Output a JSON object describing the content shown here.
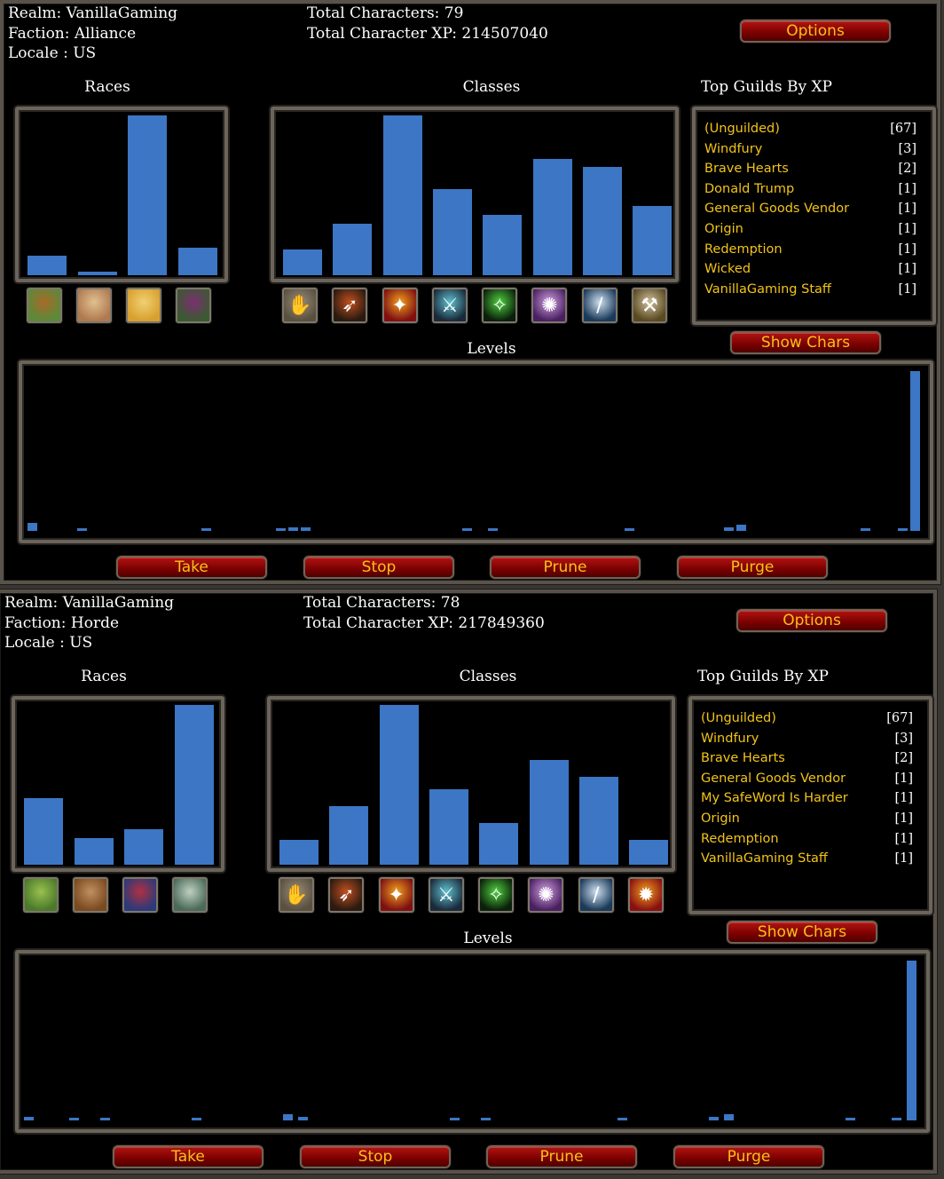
{
  "panels": [
    {
      "realm": "Realm: VanillaGaming",
      "faction": "Faction: Alliance",
      "locale": "Locale : US",
      "total_chars": "Total Characters: 79",
      "total_xp": "Total Character XP: 214507040",
      "options_label": "Options",
      "races_header": "Races",
      "classes_header": "Classes",
      "guilds_header": "Top Guilds By XP",
      "levels_header": "Levels",
      "show_chars_label": "Show Chars",
      "buttons": {
        "take": "Take",
        "stop": "Stop",
        "prune": "Prune",
        "purge": "Purge"
      },
      "race_values": [
        5,
        1,
        40,
        7
      ],
      "race_icons": [
        {
          "name": "dwarf-icon",
          "colors": [
            "#5a8a3a",
            "#a86a28"
          ]
        },
        {
          "name": "gnome-icon",
          "colors": [
            "#b07a50",
            "#e0c090"
          ]
        },
        {
          "name": "human-icon",
          "colors": [
            "#d8a030",
            "#f0d070"
          ]
        },
        {
          "name": "night-elf-icon",
          "colors": [
            "#3a5a30",
            "#7a3070"
          ]
        }
      ],
      "class_values": [
        6,
        12,
        37,
        20,
        14,
        27,
        25,
        16
      ],
      "class_icons": [
        {
          "name": "warrior-gauntlet-icon",
          "colors": [
            "#5a5040",
            "#9a8e7a"
          ],
          "glyph": "✋"
        },
        {
          "name": "hunter-bow-icon",
          "colors": [
            "#2a1a10",
            "#c05020"
          ],
          "glyph": "➶"
        },
        {
          "name": "mage-staff-icon",
          "colors": [
            "#801010",
            "#f0a020"
          ],
          "glyph": "✦"
        },
        {
          "name": "rogue-dagger-icon",
          "colors": [
            "#1a2a3a",
            "#60c0d0"
          ],
          "glyph": "⚔"
        },
        {
          "name": "druid-claw-icon",
          "colors": [
            "#0a200a",
            "#50d040"
          ],
          "glyph": "✧"
        },
        {
          "name": "warlock-tentacle-icon",
          "colors": [
            "#4a2060",
            "#d0a0e0"
          ],
          "glyph": "✺"
        },
        {
          "name": "priest-sword-icon",
          "colors": [
            "#1a3a5a",
            "#d0e0f0"
          ],
          "glyph": "/"
        },
        {
          "name": "paladin-hammer-icon",
          "colors": [
            "#5a4a20",
            "#d0c0a0"
          ],
          "glyph": "⚒"
        }
      ],
      "guilds": [
        {
          "name": "(Unguilded)",
          "count": "[67]"
        },
        {
          "name": "Windfury",
          "count": "[3]"
        },
        {
          "name": "Brave Hearts",
          "count": "[2]"
        },
        {
          "name": "Donald Trump",
          "count": "[1]"
        },
        {
          "name": "General Goods Vendor",
          "count": "[1]"
        },
        {
          "name": "Origin",
          "count": "[1]"
        },
        {
          "name": "Redemption",
          "count": "[1]"
        },
        {
          "name": "Wicked",
          "count": "[1]"
        },
        {
          "name": "VanillaGaming Staff",
          "count": "[1]"
        }
      ],
      "level_values": [
        {
          "level": 1,
          "count": 2
        },
        {
          "level": 5,
          "count": 0.5
        },
        {
          "level": 15,
          "count": 0.5
        },
        {
          "level": 21,
          "count": 0.5
        },
        {
          "level": 22,
          "count": 1
        },
        {
          "level": 23,
          "count": 1
        },
        {
          "level": 36,
          "count": 0.5
        },
        {
          "level": 38,
          "count": 0.5
        },
        {
          "level": 49,
          "count": 0.5
        },
        {
          "level": 57,
          "count": 1
        },
        {
          "level": 58,
          "count": 1.5
        },
        {
          "level": 68,
          "count": 0.5
        },
        {
          "level": 71,
          "count": 0.5
        },
        {
          "level": 72,
          "count": 40
        }
      ]
    },
    {
      "realm": "Realm: VanillaGaming",
      "faction": "Faction: Horde",
      "locale": "Locale : US",
      "total_chars": "Total Characters: 78",
      "total_xp": "Total Character XP: 217849360",
      "options_label": "Options",
      "races_header": "Races",
      "classes_header": "Classes",
      "guilds_header": "Top Guilds By XP",
      "levels_header": "Levels",
      "show_chars_label": "Show Chars",
      "buttons": {
        "take": "Take",
        "stop": "Stop",
        "prune": "Prune",
        "purge": "Purge"
      },
      "race_values": [
        15,
        6,
        8,
        36
      ],
      "race_icons": [
        {
          "name": "orc-icon",
          "colors": [
            "#4a7a2a",
            "#9ac050"
          ]
        },
        {
          "name": "tauren-icon",
          "colors": [
            "#7a4a20",
            "#c09060"
          ]
        },
        {
          "name": "troll-icon",
          "colors": [
            "#2a3a7a",
            "#b03040"
          ]
        },
        {
          "name": "undead-icon",
          "colors": [
            "#4a6a5a",
            "#c0d0c0"
          ]
        }
      ],
      "class_values": [
        6,
        14,
        38,
        18,
        10,
        25,
        21,
        6
      ],
      "class_icons": [
        {
          "name": "warrior-gauntlet-icon",
          "colors": [
            "#5a5040",
            "#9a8e7a"
          ],
          "glyph": "✋"
        },
        {
          "name": "hunter-bow-icon",
          "colors": [
            "#2a1a10",
            "#c05020"
          ],
          "glyph": "➶"
        },
        {
          "name": "mage-staff-icon",
          "colors": [
            "#801010",
            "#f0a020"
          ],
          "glyph": "✦"
        },
        {
          "name": "rogue-dagger-icon",
          "colors": [
            "#1a2a3a",
            "#60c0d0"
          ],
          "glyph": "⚔"
        },
        {
          "name": "druid-claw-icon",
          "colors": [
            "#0a200a",
            "#50d040"
          ],
          "glyph": "✧"
        },
        {
          "name": "warlock-tentacle-icon",
          "colors": [
            "#4a2060",
            "#d0a0e0"
          ],
          "glyph": "✺"
        },
        {
          "name": "priest-sword-icon",
          "colors": [
            "#1a3a5a",
            "#d0e0f0"
          ],
          "glyph": "/"
        },
        {
          "name": "shaman-totem-icon",
          "colors": [
            "#8a1010",
            "#f0a020"
          ],
          "glyph": "✹"
        }
      ],
      "guilds": [
        {
          "name": "(Unguilded)",
          "count": "[67]"
        },
        {
          "name": "Windfury",
          "count": "[3]"
        },
        {
          "name": "Brave Hearts",
          "count": "[2]"
        },
        {
          "name": "General Goods Vendor",
          "count": "[1]"
        },
        {
          "name": "My SafeWord Is Harder",
          "count": "[1]"
        },
        {
          "name": "Origin",
          "count": "[1]"
        },
        {
          "name": "Redemption",
          "count": "[1]"
        },
        {
          "name": "VanillaGaming Staff",
          "count": "[1]"
        }
      ],
      "level_values": [
        {
          "level": 1,
          "count": 1
        },
        {
          "level": 4,
          "count": 0.5
        },
        {
          "level": 6,
          "count": 0.5
        },
        {
          "level": 12,
          "count": 0.5
        },
        {
          "level": 18,
          "count": 1.5
        },
        {
          "level": 19,
          "count": 1
        },
        {
          "level": 29,
          "count": 0.5
        },
        {
          "level": 31,
          "count": 0.5
        },
        {
          "level": 40,
          "count": 0.5
        },
        {
          "level": 46,
          "count": 1
        },
        {
          "level": 47,
          "count": 1.5
        },
        {
          "level": 55,
          "count": 0.5
        },
        {
          "level": 58,
          "count": 0.5
        },
        {
          "level": 59,
          "count": 40
        }
      ]
    }
  ]
}
